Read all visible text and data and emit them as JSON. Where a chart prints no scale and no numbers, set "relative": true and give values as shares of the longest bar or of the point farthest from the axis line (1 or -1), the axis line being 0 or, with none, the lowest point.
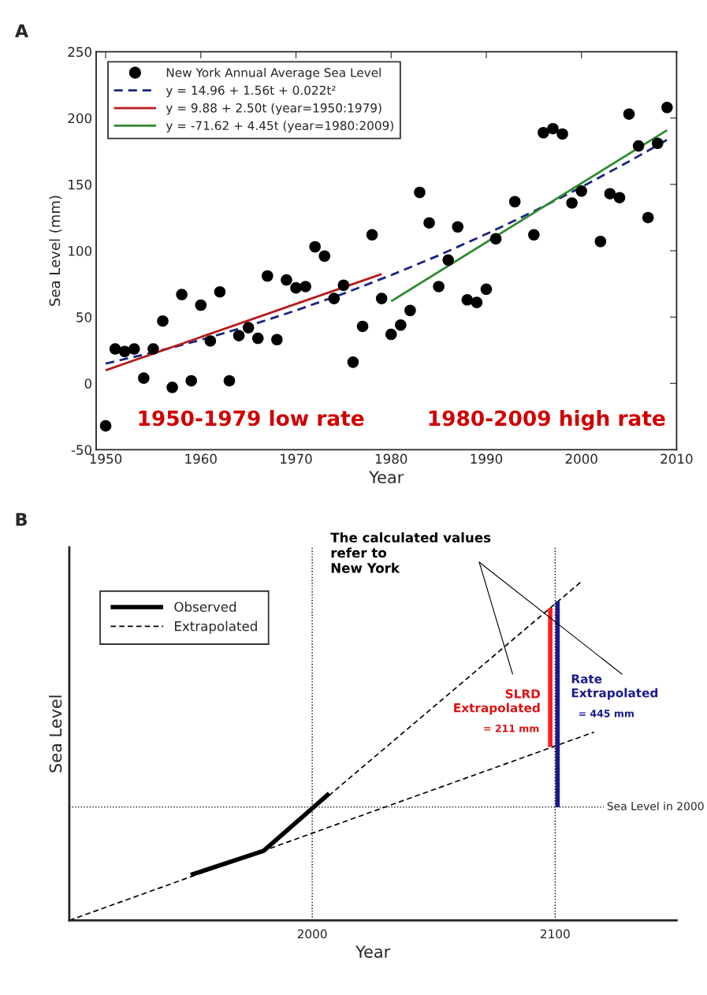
{
  "chart_data": [
    {
      "type": "scatter",
      "title": "A",
      "xlabel": "Year",
      "ylabel": "Sea Level (mm)",
      "xlim": [
        1949,
        2010
      ],
      "xticks": [
        1950,
        1960,
        1970,
        1980,
        1990,
        2000,
        2010
      ],
      "ylim": [
        -50,
        250
      ],
      "yticks": [
        -50,
        0,
        50,
        100,
        150,
        200,
        250
      ],
      "grid": false,
      "legend": "top left",
      "series": [
        {
          "name": "New York Annual Average Sea Level",
          "type": "scatter",
          "marker": "circle",
          "color": "#000000",
          "x": [
            1950,
            1951,
            1952,
            1953,
            1954,
            1955,
            1956,
            1957,
            1958,
            1959,
            1960,
            1961,
            1962,
            1963,
            1964,
            1965,
            1966,
            1967,
            1968,
            1969,
            1970,
            1971,
            1972,
            1973,
            1974,
            1975,
            1976,
            1977,
            1978,
            1979,
            1980,
            1981,
            1982,
            1983,
            1984,
            1985,
            1986,
            1987,
            1988,
            1989,
            1990,
            1991,
            1993,
            1995,
            1996,
            1997,
            1998,
            1999,
            2000,
            2002,
            2003,
            2004,
            2005,
            2006,
            2007,
            2008,
            2009
          ],
          "values": [
            -32,
            26,
            24,
            26,
            4,
            26,
            47,
            -3,
            67,
            2,
            59,
            32,
            69,
            2,
            36,
            42,
            34,
            81,
            33,
            78,
            72,
            73,
            103,
            96,
            64,
            74,
            16,
            43,
            112,
            64,
            37,
            44,
            55,
            144,
            121,
            73,
            93,
            118,
            63,
            61,
            71,
            109,
            137,
            112,
            189,
            192,
            188,
            136,
            145,
            107,
            143,
            140,
            203,
            179,
            125,
            181,
            208
          ]
        },
        {
          "name": "y = 14.96 + 1.56t + 0.022t²",
          "type": "line",
          "line_style": "dashed",
          "color": "#1a237e",
          "x": [
            1950,
            1955,
            1960,
            1965,
            1970,
            1975,
            1980,
            1985,
            1990,
            1995,
            2000,
            2005,
            2009
          ],
          "values": [
            15.0,
            23.3,
            32.8,
            43.3,
            55.0,
            67.7,
            81.6,
            96.5,
            112.6,
            129.7,
            148.0,
            167.3,
            183.6
          ]
        },
        {
          "name": "y = 9.88 + 2.50t (year=1950:1979)",
          "type": "line",
          "line_style": "solid",
          "color": "#b71c1c",
          "x": [
            1950,
            1979
          ],
          "values": [
            9.9,
            82.4
          ]
        },
        {
          "name": "y = -71.62 + 4.45t (year=1980:2009)",
          "type": "line",
          "line_style": "solid",
          "color": "#2e8b2e",
          "x": [
            1980,
            2009
          ],
          "values": [
            61.9,
            190.9
          ]
        }
      ],
      "annotations": [
        "1950-1979 low rate",
        "1980-2009 high rate"
      ]
    },
    {
      "type": "line",
      "title": "B",
      "xlabel": "Year",
      "ylabel": "Sea Level",
      "relative": true,
      "tick_labels": "x",
      "xlim": [
        1900,
        2150
      ],
      "xticks": [
        2000,
        2100
      ],
      "grid": false,
      "legend": "top left",
      "series": [
        {
          "name": "Observed",
          "line_style": "solid",
          "color": "#000000",
          "x": [
            1950,
            1980,
            2007
          ],
          "values": [
            0.134,
            0.205,
            0.374
          ]
        },
        {
          "name": "Extrapolated",
          "line_style": "dashed",
          "color": "#000000",
          "x": [
            1900,
            2116
          ],
          "values": [
            0,
            0.555
          ]
        },
        {
          "line_style": "dashed",
          "color": "#000000",
          "x": [
            1980,
            2111
          ],
          "values": [
            0.205,
            1
          ]
        },
        {
          "line_style": "solid",
          "color": "#ff1a1a",
          "x": [
            2098,
            2098
          ],
          "values": [
            0.511,
            0.921
          ]
        },
        {
          "line_style": "solid",
          "color": "#1a1a8c",
          "x": [
            2101,
            2101
          ],
          "values": [
            0.334,
            0.941
          ]
        }
      ],
      "ref_lines": [
        {
          "axis": "x",
          "value": 2000,
          "line_style": "dotted",
          "color": "#000000"
        },
        {
          "axis": "x",
          "value": 2100,
          "line_style": "dotted",
          "color": "#000000"
        },
        {
          "axis": "y",
          "value": 0.334,
          "label": "Sea Level in 2000",
          "line_style": "dotted",
          "color": "#000000"
        }
      ],
      "annotations": [
        "The calculated values\nrefer to\nNew York",
        "SLRD\nExtrapolated",
        "= 211 mm",
        "Rate\nExtrapolated",
        "= 445 mm"
      ]
    }
  ]
}
